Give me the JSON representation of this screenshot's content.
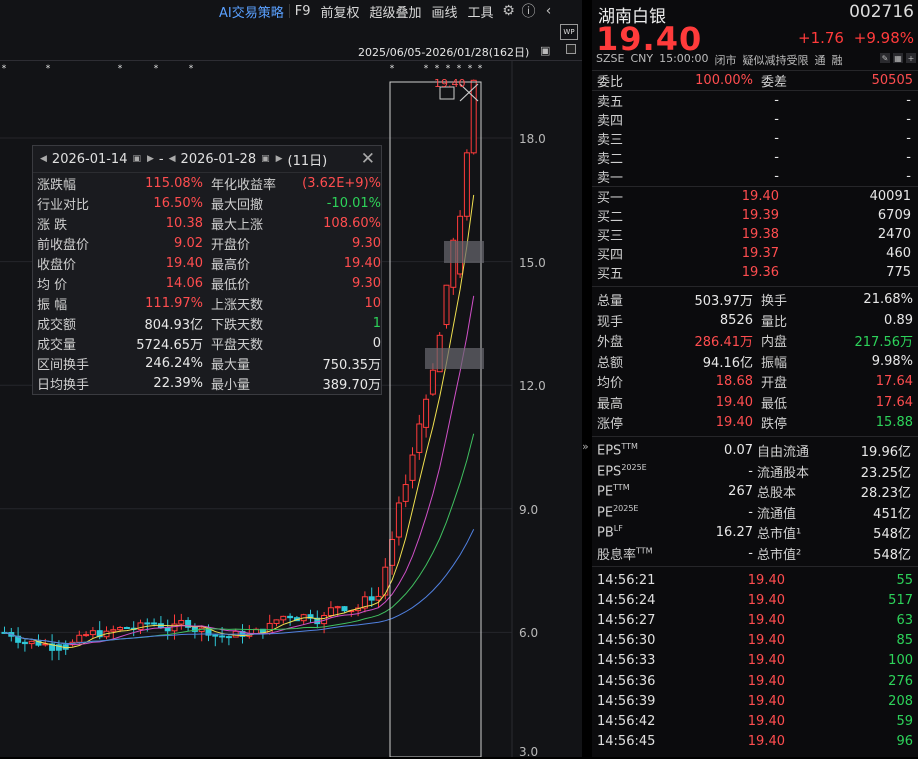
{
  "toolbar": {
    "items": [
      "AI交易策略",
      "F9",
      "前复权",
      "超级叠加",
      "画线",
      "工具"
    ]
  },
  "chart": {
    "range_label": "2025/06/05-2026/01/28(162日)",
    "y_axis": [
      "18.0",
      "15.0",
      "12.0",
      "9.0",
      "6.0",
      "3.0"
    ],
    "peak_label": "19.40",
    "colors": {
      "up": "#ff3b3b",
      "down": "#2ec8d8",
      "ma1": "#f0e050",
      "ma2": "#d050c8",
      "ma3": "#40c060",
      "ma4": "#5080e0"
    }
  },
  "stats": {
    "start_date": "2026-01-14",
    "end_date": "2026-01-28",
    "days": "(11日)",
    "rows": [
      {
        "l": "涨跌幅",
        "v": "115.08%",
        "vc": "red",
        "l2": "年化收益率",
        "v2": "(3.62E+9)%",
        "v2c": "red"
      },
      {
        "l": "行业对比",
        "v": "16.50%",
        "vc": "red",
        "l2": "最大回撤",
        "v2": "-10.01%",
        "v2c": "green"
      },
      {
        "l": "涨 跌",
        "v": "10.38",
        "vc": "red",
        "l2": "最大上涨",
        "v2": "108.60%",
        "v2c": "red"
      },
      {
        "l": "前收盘价",
        "v": "9.02",
        "vc": "red",
        "l2": "开盘价",
        "v2": "9.30",
        "v2c": "red"
      },
      {
        "l": "收盘价",
        "v": "19.40",
        "vc": "red",
        "l2": "最高价",
        "v2": "19.40",
        "v2c": "red"
      },
      {
        "l": "均 价",
        "v": "14.06",
        "vc": "red",
        "l2": "最低价",
        "v2": "9.30",
        "v2c": "red"
      },
      {
        "l": "振 幅",
        "v": "111.97%",
        "vc": "red",
        "l2": "上涨天数",
        "v2": "10",
        "v2c": "red"
      },
      {
        "l": "成交额",
        "v": "804.93亿",
        "vc": "white",
        "l2": "下跌天数",
        "v2": "1",
        "v2c": "green"
      },
      {
        "l": "成交量",
        "v": "5724.65万",
        "vc": "white",
        "l2": "平盘天数",
        "v2": "0",
        "v2c": "white"
      },
      {
        "l": "区间换手",
        "v": "246.24%",
        "vc": "white",
        "l2": "最大量",
        "v2": "750.35万",
        "v2c": "white"
      },
      {
        "l": "日均换手",
        "v": "22.39%",
        "vc": "white",
        "l2": "最小量",
        "v2": "389.70万",
        "v2c": "white"
      }
    ]
  },
  "quote": {
    "name": "湖南白银",
    "code": "002716",
    "price": "19.40",
    "change": "+1.76",
    "change_pct": "+9.98%",
    "meta": [
      "SZSE",
      "CNY",
      "15:00:00",
      "闭市",
      "疑似减持受限",
      "通",
      "融"
    ],
    "weibi": {
      "l": "委比",
      "v": "100.00%",
      "l2": "委差",
      "v2": "50505"
    },
    "asks": [
      {
        "l": "卖五",
        "p": "-",
        "v": "-"
      },
      {
        "l": "卖四",
        "p": "-",
        "v": "-"
      },
      {
        "l": "卖三",
        "p": "-",
        "v": "-"
      },
      {
        "l": "卖二",
        "p": "-",
        "v": "-"
      },
      {
        "l": "卖一",
        "p": "-",
        "v": "-"
      }
    ],
    "bids": [
      {
        "l": "买一",
        "p": "19.40",
        "v": "40091"
      },
      {
        "l": "买二",
        "p": "19.39",
        "v": "6709"
      },
      {
        "l": "买三",
        "p": "19.38",
        "v": "2470"
      },
      {
        "l": "买四",
        "p": "19.37",
        "v": "460"
      },
      {
        "l": "买五",
        "p": "19.36",
        "v": "775"
      }
    ],
    "details": [
      {
        "l": "总量",
        "v": "503.97万",
        "c": "white",
        "l2": "换手",
        "v2": "21.68%",
        "c2": "white"
      },
      {
        "l": "现手",
        "v": "8526",
        "c": "white",
        "l2": "量比",
        "v2": "0.89",
        "c2": "white"
      },
      {
        "l": "外盘",
        "v": "286.41万",
        "c": "red",
        "l2": "内盘",
        "v2": "217.56万",
        "c2": "green"
      },
      {
        "l": "总额",
        "v": "94.16亿",
        "c": "white",
        "l2": "振幅",
        "v2": "9.98%",
        "c2": "white"
      },
      {
        "l": "均价",
        "v": "18.68",
        "c": "red",
        "l2": "开盘",
        "v2": "17.64",
        "c2": "red"
      },
      {
        "l": "最高",
        "v": "19.40",
        "c": "red",
        "l2": "最低",
        "v2": "17.64",
        "c2": "red"
      },
      {
        "l": "涨停",
        "v": "19.40",
        "c": "red",
        "l2": "跌停",
        "v2": "15.88",
        "c2": "green"
      }
    ],
    "fundamentals": [
      {
        "l": "EPS",
        "s": "TTM",
        "v": "0.07",
        "l2": "自由流通",
        "v2": "19.96亿"
      },
      {
        "l": "EPS",
        "s": "2025E",
        "v": "-",
        "l2": "流通股本",
        "v2": "23.25亿"
      },
      {
        "l": "PE",
        "s": "TTM",
        "v": "267",
        "l2": "总股本",
        "v2": "28.23亿"
      },
      {
        "l": "PE",
        "s": "2025E",
        "v": "-",
        "l2": "流通值",
        "v2": "451亿"
      },
      {
        "l": "PB",
        "s": "LF",
        "v": "16.27",
        "l2": "总市值¹",
        "v2": "548亿"
      },
      {
        "l": "股息率",
        "s": "TTM",
        "v": "-",
        "l2": "总市值²",
        "v2": "548亿"
      }
    ],
    "ticks": [
      {
        "t": "14:56:21",
        "p": "19.40",
        "v": "55"
      },
      {
        "t": "14:56:24",
        "p": "19.40",
        "v": "517"
      },
      {
        "t": "14:56:27",
        "p": "19.40",
        "v": "63"
      },
      {
        "t": "14:56:30",
        "p": "19.40",
        "v": "85"
      },
      {
        "t": "14:56:33",
        "p": "19.40",
        "v": "100"
      },
      {
        "t": "14:56:36",
        "p": "19.40",
        "v": "276"
      },
      {
        "t": "14:56:39",
        "p": "19.40",
        "v": "208"
      },
      {
        "t": "14:56:42",
        "p": "19.40",
        "v": "59"
      },
      {
        "t": "14:56:45",
        "p": "19.40",
        "v": "96"
      }
    ]
  }
}
